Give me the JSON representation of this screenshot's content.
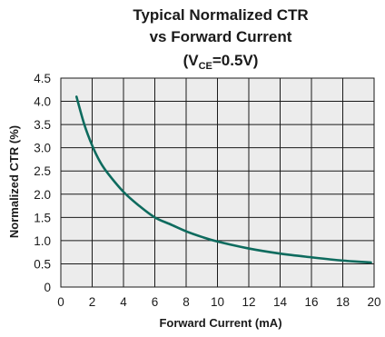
{
  "chart_data": {
    "type": "line",
    "title_line1": "Typical Normalized CTR",
    "title_line2": "vs Forward Current",
    "title_line3_prefix": "(V",
    "title_line3_subscript": "CE",
    "title_line3_suffix": "=0.5V)",
    "xlabel": "Forward Current (mA)",
    "ylabel": "Normalized CTR (%)",
    "xlim": [
      0,
      20
    ],
    "ylim": [
      0,
      4.5
    ],
    "x_ticks": [
      0,
      2,
      4,
      6,
      8,
      10,
      12,
      14,
      16,
      18,
      20
    ],
    "y_ticks": [
      0,
      0.5,
      1.0,
      1.5,
      2.0,
      2.5,
      3.0,
      3.5,
      4.0,
      4.5
    ],
    "x_tick_labels": [
      "0",
      "2",
      "4",
      "6",
      "8",
      "10",
      "12",
      "14",
      "16",
      "18",
      "20"
    ],
    "y_tick_labels": [
      "0",
      "0.5",
      "1.0",
      "1.5",
      "2.0",
      "2.5",
      "3.0",
      "3.5",
      "4.0",
      "4.5"
    ],
    "grid": true,
    "colors": {
      "plot_background": "#ececec",
      "grid": "#1a1a1a",
      "curve": "#0e6b5e"
    },
    "series": [
      {
        "x": [
          1.0,
          1.5,
          2.0,
          2.5,
          3.0,
          4.0,
          5.0,
          6.0,
          7.0,
          8.0,
          9.0,
          10.0,
          12.0,
          14.0,
          16.0,
          18.0,
          19.8
        ],
        "y": [
          4.1,
          3.5,
          3.05,
          2.7,
          2.45,
          2.05,
          1.75,
          1.5,
          1.35,
          1.2,
          1.08,
          0.98,
          0.83,
          0.72,
          0.64,
          0.57,
          0.53
        ]
      }
    ]
  }
}
